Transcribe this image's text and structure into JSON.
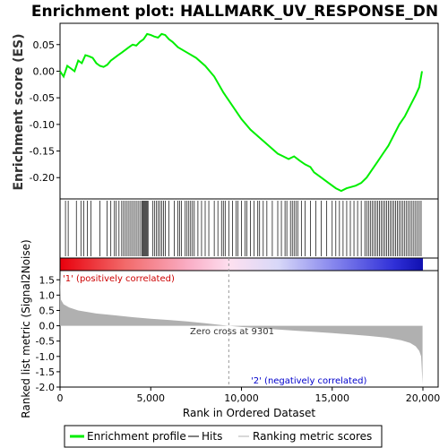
{
  "chart_data": {
    "type": "line",
    "title": "Enrichment plot: HALLMARK_UV_RESPONSE_DN",
    "top_panel": {
      "ylabel": "Enrichment score (ES)",
      "ylim": [
        -0.24,
        0.09
      ],
      "yticks": [
        "0.05",
        "0.00",
        "-0.05",
        "-0.10",
        "-0.15",
        "-0.20"
      ],
      "yticks_values": [
        0.05,
        0.0,
        -0.05,
        -0.1,
        -0.15,
        -0.2
      ],
      "series": [
        {
          "name": "Enrichment profile",
          "color": "#00ee00",
          "x": [
            0,
            200,
            400,
            600,
            800,
            1000,
            1200,
            1400,
            1600,
            1800,
            2000,
            2200,
            2400,
            2600,
            2800,
            3000,
            3200,
            3400,
            3600,
            3800,
            4000,
            4200,
            4400,
            4600,
            4800,
            5000,
            5200,
            5400,
            5600,
            5800,
            6000,
            6200,
            6500,
            7000,
            7500,
            8000,
            8500,
            9000,
            9500,
            10000,
            10500,
            11000,
            11500,
            12000,
            12300,
            12600,
            12900,
            13200,
            13500,
            13800,
            14000,
            14400,
            14800,
            15200,
            15500,
            15800,
            16000,
            16300,
            16600,
            16900,
            17200,
            17500,
            17800,
            18100,
            18400,
            18700,
            19000,
            19300,
            19600,
            19800,
            19950
          ],
          "values": [
            0.0,
            -0.01,
            0.01,
            0.005,
            0.0,
            0.02,
            0.015,
            0.03,
            0.028,
            0.025,
            0.015,
            0.01,
            0.008,
            0.012,
            0.02,
            0.025,
            0.03,
            0.035,
            0.04,
            0.045,
            0.05,
            0.048,
            0.055,
            0.06,
            0.07,
            0.068,
            0.065,
            0.063,
            0.07,
            0.068,
            0.06,
            0.055,
            0.045,
            0.035,
            0.025,
            0.01,
            -0.01,
            -0.04,
            -0.065,
            -0.09,
            -0.11,
            -0.125,
            -0.14,
            -0.155,
            -0.16,
            -0.165,
            -0.16,
            -0.168,
            -0.175,
            -0.18,
            -0.19,
            -0.2,
            -0.21,
            -0.22,
            -0.225,
            -0.22,
            -0.218,
            -0.215,
            -0.21,
            -0.2,
            -0.185,
            -0.17,
            -0.155,
            -0.14,
            -0.12,
            -0.1,
            -0.085,
            -0.065,
            -0.045,
            -0.03,
            0.0
          ]
        }
      ]
    },
    "hits_panel": {
      "legend_name": "Hits",
      "hit_ranks": [
        300,
        450,
        900,
        1150,
        1300,
        1500,
        1700,
        2200,
        2600,
        2800,
        3000,
        3100,
        3250,
        3400,
        3500,
        3600,
        3700,
        3800,
        3900,
        4000,
        4100,
        4200,
        4300,
        4400,
        4500,
        4550,
        4600,
        4650,
        4700,
        4750,
        4800,
        4850,
        5100,
        5200,
        5300,
        5400,
        5500,
        5600,
        5700,
        5800,
        6000,
        6300,
        6500,
        6600,
        6700,
        6900,
        7000,
        7100,
        7200,
        7300,
        7400,
        7600,
        7800,
        8000,
        8200,
        8500,
        8700,
        8900,
        9000,
        9100,
        9300,
        9500,
        9700,
        9800,
        10000,
        10200,
        10300,
        10500,
        10700,
        10900,
        11000,
        11200,
        11400,
        11700,
        12000,
        12200,
        12400,
        12500,
        12700,
        12800,
        12900,
        13000,
        13100,
        13300,
        13500,
        13800,
        14100,
        14400,
        14700,
        15000,
        15200,
        15400,
        15600,
        15800,
        16000,
        16200,
        16400,
        16600,
        16800,
        16900,
        17000,
        17100,
        17200,
        17300,
        17400,
        17500,
        17600,
        17700,
        17800,
        17900,
        18000,
        18100,
        18200,
        18300,
        18400,
        18500,
        18600,
        18700,
        18800,
        18900,
        19000,
        19100,
        19200,
        19300,
        19400,
        19500,
        19600,
        19700,
        19800,
        19900
      ]
    },
    "metric_panel": {
      "legend_name": "Ranking metric scores",
      "ylabel": "Ranked list metric (Signal2Noise)",
      "xlabel": "Rank in Ordered Dataset",
      "ylim": [
        -2.0,
        1.8
      ],
      "yticks": [
        "1.5",
        "1.0",
        "0.5",
        "0.0",
        "-0.5",
        "-1.0",
        "-1.5",
        "-2.0"
      ],
      "yticks_values": [
        1.5,
        1.0,
        0.5,
        0.0,
        -0.5,
        -1.0,
        -1.5,
        -2.0
      ],
      "x": [
        0,
        50,
        200,
        500,
        1000,
        2000,
        3000,
        4000,
        5000,
        6000,
        7000,
        8000,
        9301,
        10000,
        11000,
        12000,
        13000,
        14000,
        15000,
        16000,
        17000,
        18000,
        18800,
        19300,
        19600,
        19800,
        19900,
        19980
      ],
      "values": [
        1.7,
        0.85,
        0.7,
        0.6,
        0.5,
        0.4,
        0.34,
        0.28,
        0.23,
        0.19,
        0.14,
        0.08,
        0.0,
        -0.04,
        -0.08,
        -0.12,
        -0.16,
        -0.2,
        -0.24,
        -0.28,
        -0.33,
        -0.39,
        -0.47,
        -0.56,
        -0.67,
        -0.82,
        -1.0,
        -1.9
      ],
      "zero_cross_label": "Zero cross at 9301",
      "zero_cross": 9301,
      "pos_label": "'1' (positively correlated)",
      "neg_label": "'2' (negatively correlated)"
    },
    "xlim": [
      0,
      20000
    ],
    "xticks": [
      "0",
      "5,000",
      "10,000",
      "15,000",
      "20,000"
    ],
    "xticks_values": [
      0,
      5000,
      10000,
      15000,
      20000
    ],
    "legend": [
      "Enrichment profile",
      "Hits",
      "Ranking metric scores"
    ],
    "legend_position": "bottom",
    "colors": {
      "profile": "#00ee00",
      "hits": "#000000",
      "metric_fill": "#b0b0b0",
      "pos_text": "#cc0000",
      "neg_text": "#0000cc",
      "zero_line": "#999999"
    }
  }
}
